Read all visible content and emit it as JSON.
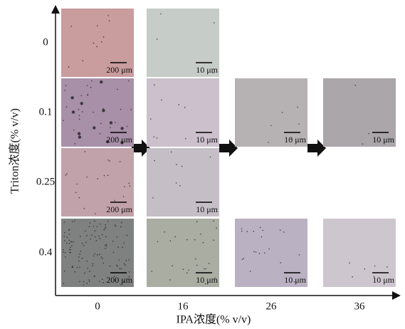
{
  "y_axis": {
    "title": "Triton浓度(% v/v)"
  },
  "x_axis": {
    "title": "IPA浓度(% v/v)",
    "labels": [
      "0",
      "16",
      "26",
      "36"
    ]
  },
  "rows": [
    {
      "label": "0",
      "scales": [
        "200 μm",
        "10 μm"
      ]
    },
    {
      "label": "0.1",
      "scales": [
        "200 μm",
        "10 μm",
        "10 μm",
        "10 μm"
      ]
    },
    {
      "label": "0.25",
      "scales": [
        "200 μm",
        "10 μm"
      ]
    },
    {
      "label": "0.4",
      "scales": [
        "200 μm",
        "10 μm",
        "10 μm",
        "10 μm"
      ]
    }
  ]
}
